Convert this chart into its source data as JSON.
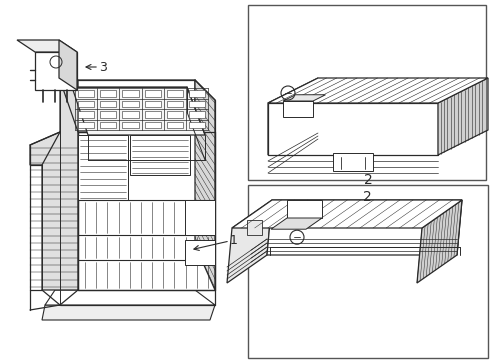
{
  "background_color": "#ffffff",
  "line_color": "#2a2a2a",
  "line_width": 0.9,
  "label1": "1",
  "label2": "2",
  "label3": "3"
}
